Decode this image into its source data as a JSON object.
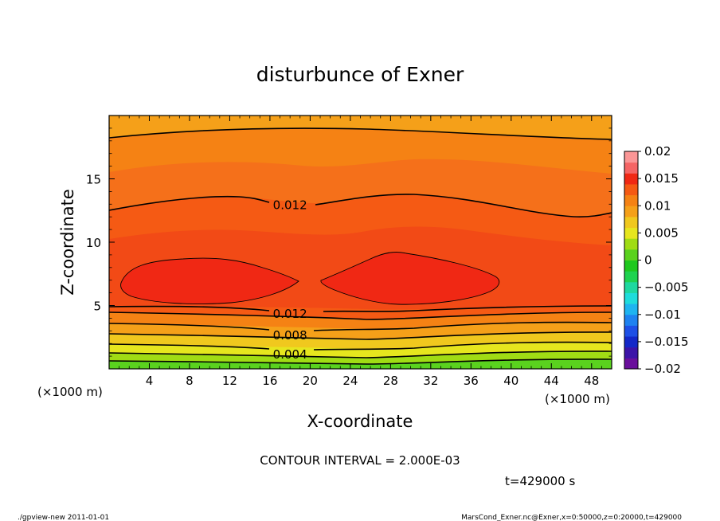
{
  "chart_data": {
    "type": "heatmap",
    "title": "disturbunce of Exner",
    "xlabel": "X-coordinate",
    "ylabel": "Z-coordinate",
    "x_unit_left": "(×1000 m)",
    "x_unit_right": "(×1000 m)",
    "xlim": [
      0,
      50
    ],
    "ylim": [
      0,
      20
    ],
    "x_ticks": [
      4,
      8,
      12,
      16,
      20,
      24,
      28,
      32,
      36,
      40,
      44,
      48
    ],
    "y_ticks": [
      5,
      10,
      15
    ],
    "colorbar": {
      "levels": [
        -0.02,
        -0.015,
        -0.01,
        -0.005,
        0,
        0.005,
        0.01,
        0.015,
        0.02
      ],
      "labels": [
        "0.02",
        "0.015",
        "0.01",
        "0.005",
        "0",
        "−0.005",
        "−0.01",
        "−0.015",
        "−0.02"
      ],
      "colors_bottom_to_top": [
        "#6a0f9c",
        "#3c14a8",
        "#1428c8",
        "#1e50e6",
        "#1e82f0",
        "#1eb4f0",
        "#1edcdc",
        "#1ed8a0",
        "#1ed250",
        "#1ec81e",
        "#5ad21e",
        "#a0dc14",
        "#e6e61e",
        "#f0c81e",
        "#f5a019",
        "#f58214",
        "#f55a14",
        "#f02814",
        "#f56464",
        "#fa9696"
      ]
    },
    "contour_interval_text": "CONTOUR INTERVAL = 2.000E-03",
    "contour_labels": [
      {
        "text": "0.012",
        "x": 18,
        "z": 13.0
      },
      {
        "text": "0.012",
        "x": 18,
        "z": 4.4
      },
      {
        "text": "0.008",
        "x": 18,
        "z": 2.7
      },
      {
        "text": "0.004",
        "x": 18,
        "z": 1.2
      }
    ],
    "time_text": "t=429000 s",
    "footer_left": "./gpview-new  2011-01-01",
    "footer_right": "MarsCond_Exner.nc@Exner,x=0:50000,z=0:20000,t=429000"
  }
}
